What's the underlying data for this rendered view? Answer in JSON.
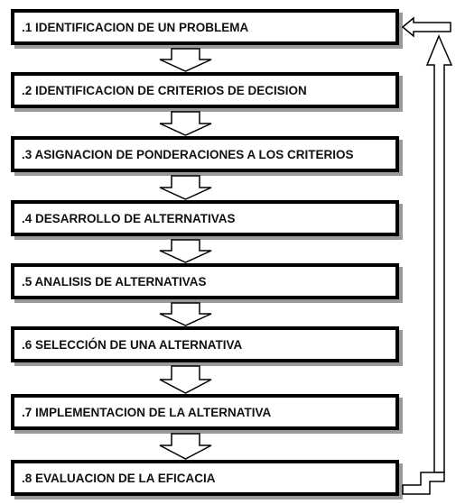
{
  "diagram": {
    "steps": [
      {
        "label": ".1 IDENTIFICACION DE UN PROBLEMA"
      },
      {
        "label": ".2 IDENTIFICACION DE CRITERIOS DE DECISION"
      },
      {
        "label": ".3 ASIGNACION DE PONDERACIONES A LOS CRITERIOS"
      },
      {
        "label": ".4 DESARROLLO DE ALTERNATIVAS"
      },
      {
        "label": ".5 ANALISIS DE ALTERNATIVAS"
      },
      {
        "label": ".6 SELECCIÓN DE UNA ALTERNATIVA"
      },
      {
        "label": ".7 IMPLEMENTACION DE LA ALTERNATIVA"
      },
      {
        "label": ".8 EVALUACION DE LA EFICACIA"
      }
    ],
    "colors": {
      "border": "#000000",
      "shadow": "#9a9a9a",
      "arrow_fill": "#ffffff"
    }
  }
}
